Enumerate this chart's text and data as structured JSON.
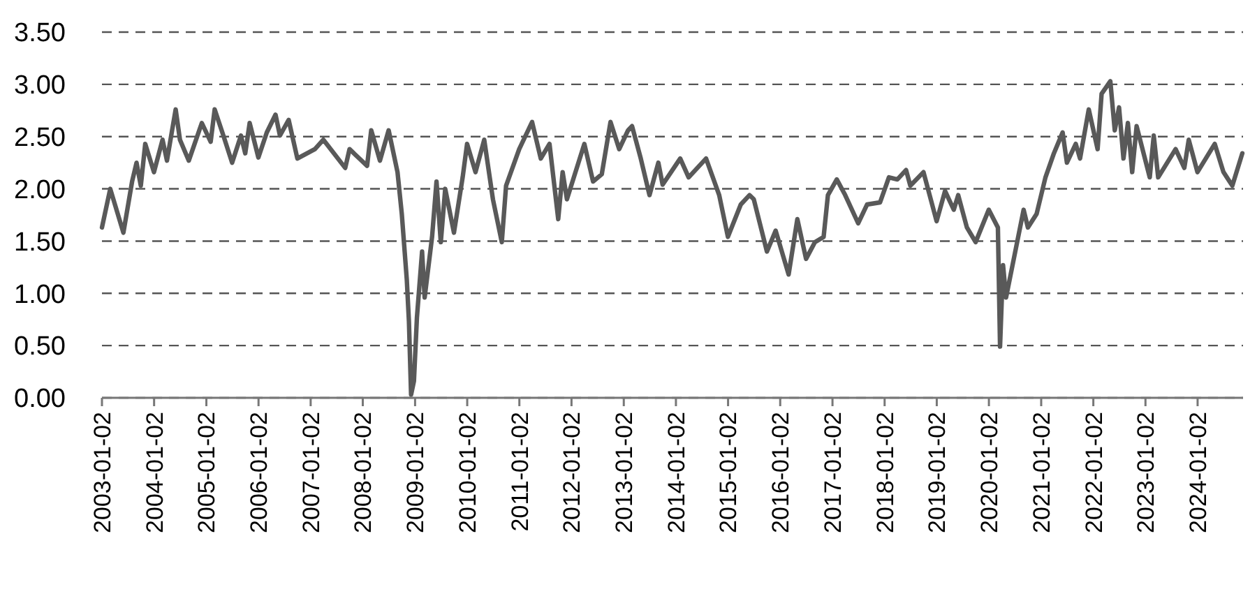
{
  "chart_data": {
    "type": "line",
    "x": [
      "2003-01-02",
      "2003-03",
      "2003-06",
      "2003-08",
      "2003-09",
      "2003-10",
      "2003-11",
      "2004-01",
      "2004-03",
      "2004-04",
      "2004-06",
      "2004-07",
      "2004-09",
      "2004-12",
      "2005-02",
      "2005-03",
      "2005-05",
      "2005-07",
      "2005-09",
      "2005-10",
      "2005-11",
      "2006-01",
      "2006-03",
      "2006-05",
      "2006-06",
      "2006-08",
      "2006-10",
      "2007-02",
      "2007-04",
      "2007-09",
      "2007-10",
      "2008-02",
      "2008-03",
      "2008-05",
      "2008-07",
      "2008-09",
      "2008-10",
      "2008-11-05",
      "2008-11-20",
      "2008-12-05",
      "2008-12-25",
      "2009-01-15",
      "2009-02-20",
      "2009-03-10",
      "2009-05",
      "2009-06",
      "2009-07",
      "2009-08",
      "2009-10",
      "2009-12",
      "2010-01",
      "2010-03",
      "2010-05",
      "2010-07",
      "2010-09",
      "2010-10",
      "2011-01",
      "2011-04",
      "2011-06",
      "2011-08",
      "2011-10",
      "2011-11",
      "2011-12",
      "2012-04",
      "2012-06",
      "2012-08",
      "2012-10",
      "2012-12",
      "2013-02",
      "2013-03",
      "2013-05",
      "2013-07",
      "2013-09",
      "2013-10",
      "2014-02",
      "2014-04",
      "2014-08",
      "2014-11",
      "2015-01",
      "2015-04",
      "2015-06",
      "2015-07",
      "2015-10",
      "2015-12",
      "2016-03",
      "2016-05",
      "2016-07",
      "2016-09",
      "2016-11",
      "2016-12",
      "2017-02",
      "2017-04",
      "2017-07",
      "2017-09",
      "2017-12",
      "2018-02",
      "2018-04",
      "2018-06",
      "2018-07",
      "2018-10",
      "2019-01",
      "2019-03",
      "2019-05",
      "2019-06",
      "2019-08",
      "2019-10",
      "2020-01",
      "2020-03-05",
      "2020-03-20",
      "2020-04-10",
      "2020-05",
      "2020-09",
      "2020-10",
      "2020-12",
      "2021-02",
      "2021-04",
      "2021-06",
      "2021-07",
      "2021-09",
      "2021-10",
      "2021-12",
      "2022-02",
      "2022-03",
      "2022-05",
      "2022-06",
      "2022-07",
      "2022-08",
      "2022-09",
      "2022-10",
      "2022-11",
      "2023-02",
      "2023-03",
      "2023-04",
      "2023-08",
      "2023-10",
      "2023-11",
      "2024-01",
      "2024-05",
      "2024-07",
      "2024-09",
      "2024-11-10"
    ],
    "series": [
      {
        "color": "#595959",
        "values": [
          1.63,
          2.0,
          1.58,
          2.07,
          2.25,
          2.03,
          2.43,
          2.16,
          2.47,
          2.27,
          2.76,
          2.47,
          2.27,
          2.63,
          2.45,
          2.76,
          2.51,
          2.25,
          2.51,
          2.34,
          2.63,
          2.3,
          2.54,
          2.71,
          2.51,
          2.66,
          2.29,
          2.38,
          2.47,
          2.2,
          2.38,
          2.22,
          2.56,
          2.27,
          2.56,
          2.16,
          1.76,
          1.13,
          0.73,
          0.03,
          0.16,
          0.77,
          1.4,
          0.96,
          1.54,
          2.07,
          1.49,
          2.0,
          1.58,
          2.11,
          2.43,
          2.16,
          2.47,
          1.9,
          1.49,
          2.03,
          2.38,
          2.64,
          2.29,
          2.43,
          1.71,
          2.16,
          1.9,
          2.43,
          2.07,
          2.14,
          2.64,
          2.38,
          2.56,
          2.6,
          2.29,
          1.94,
          2.25,
          2.04,
          2.29,
          2.11,
          2.29,
          1.94,
          1.54,
          1.85,
          1.94,
          1.9,
          1.4,
          1.6,
          1.18,
          1.71,
          1.33,
          1.49,
          1.54,
          1.94,
          2.09,
          1.94,
          1.67,
          1.85,
          1.87,
          2.11,
          2.09,
          2.18,
          2.03,
          2.16,
          1.69,
          1.98,
          1.8,
          1.94,
          1.63,
          1.49,
          1.8,
          1.63,
          0.49,
          1.27,
          0.96,
          1.8,
          1.63,
          1.76,
          2.11,
          2.34,
          2.54,
          2.25,
          2.43,
          2.29,
          2.76,
          2.38,
          2.91,
          3.03,
          2.56,
          2.78,
          2.29,
          2.63,
          2.16,
          2.6,
          2.11,
          2.51,
          2.11,
          2.38,
          2.2,
          2.47,
          2.16,
          2.43,
          2.16,
          2.03,
          2.34
        ]
      }
    ],
    "xlim": [
      "2003-01-02",
      "2024-11-15"
    ],
    "xticks": [
      "2003-01-02",
      "2004-01-02",
      "2005-01-02",
      "2006-01-02",
      "2007-01-02",
      "2008-01-02",
      "2009-01-02",
      "2010-01-02",
      "2011-01-02",
      "2012-01-02",
      "2013-01-02",
      "2014-01-02",
      "2015-01-02",
      "2016-01-02",
      "2017-01-02",
      "2018-01-02",
      "2019-01-02",
      "2020-01-02",
      "2021-01-02",
      "2022-01-02",
      "2023-01-02",
      "2024-01-02"
    ],
    "ylim": [
      0,
      3.5
    ],
    "yticks": [
      {
        "value": 0,
        "label": "0.00"
      },
      {
        "value": 0.5,
        "label": "0.50"
      },
      {
        "value": 1,
        "label": "1.00"
      },
      {
        "value": 1.5,
        "label": "1.50"
      },
      {
        "value": 2,
        "label": "2.00"
      },
      {
        "value": 2.5,
        "label": "2.50"
      },
      {
        "value": 3,
        "label": "3.00"
      },
      {
        "value": 3.5,
        "label": "3.50"
      }
    ],
    "grid": "y",
    "line_style": "solid",
    "marker": "none"
  }
}
